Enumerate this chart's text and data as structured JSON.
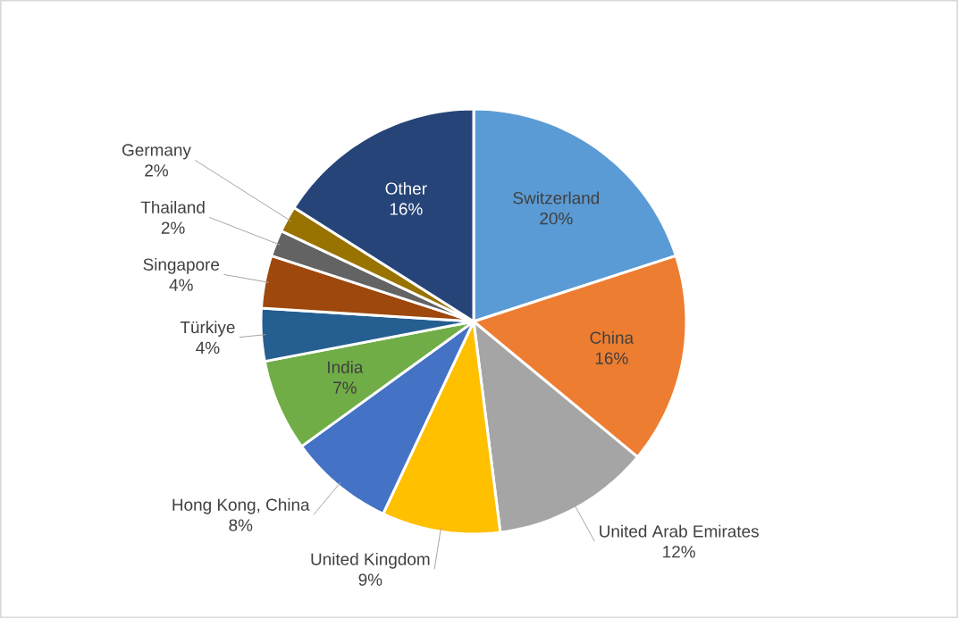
{
  "chart_data": {
    "type": "pie",
    "categories": [
      "Switzerland",
      "China",
      "United Arab Emirates",
      "United Kingdom",
      "Hong Kong, China",
      "India",
      "Türkiye",
      "Singapore",
      "Thailand",
      "Germany",
      "Other"
    ],
    "values": [
      20,
      16,
      12,
      9,
      8,
      7,
      4,
      4,
      2,
      2,
      16
    ],
    "value_labels": [
      "20%",
      "16%",
      "12%",
      "9%",
      "8%",
      "7%",
      "4%",
      "4%",
      "2%",
      "2%",
      "16%"
    ],
    "colors": [
      "#5b9bd5",
      "#ed7d31",
      "#a5a5a5",
      "#ffc000",
      "#4472c4",
      "#70ad47",
      "#255e91",
      "#9e480e",
      "#636363",
      "#997300",
      "#264478"
    ]
  }
}
